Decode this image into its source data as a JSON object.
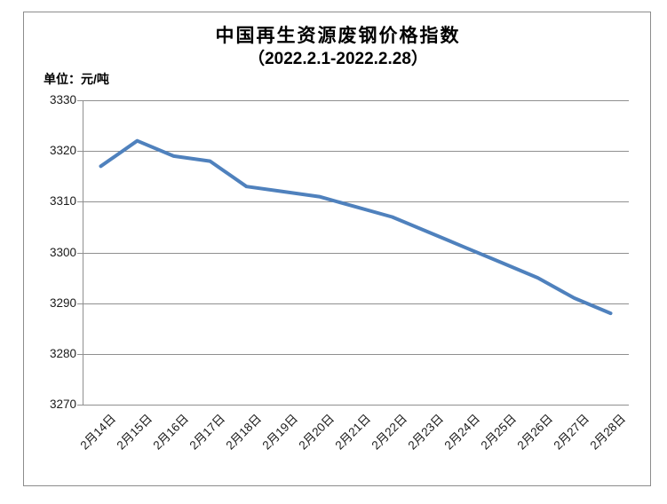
{
  "colors": {
    "line": "#4F81BD",
    "gridline": "#8f8f8f",
    "axis": "#8f8f8f",
    "frame_border": "#8c8c8c",
    "text": "#000000"
  },
  "chart_data": {
    "type": "line",
    "title": "中国再生资源废钢价格指数",
    "subtitle": "（2022.2.1-2022.2.28）",
    "unit_label": "单位：元/吨",
    "categories": [
      "2月14日",
      "2月15日",
      "2月16日",
      "2月17日",
      "2月18日",
      "2月19日",
      "2月20日",
      "2月21日",
      "2月22日",
      "2月23日",
      "2月24日",
      "2月25日",
      "2月26日",
      "2月27日",
      "2月28日"
    ],
    "values": [
      3317,
      3322,
      3319,
      3318,
      3313,
      3312,
      3311,
      3309,
      3307,
      3304,
      3301,
      3298,
      3295,
      3291,
      3288
    ],
    "ylim": [
      3270,
      3330
    ],
    "yticks": [
      3330,
      3320,
      3310,
      3300,
      3290,
      3280,
      3270
    ],
    "grid": "horizontal-major",
    "legend": "none"
  }
}
